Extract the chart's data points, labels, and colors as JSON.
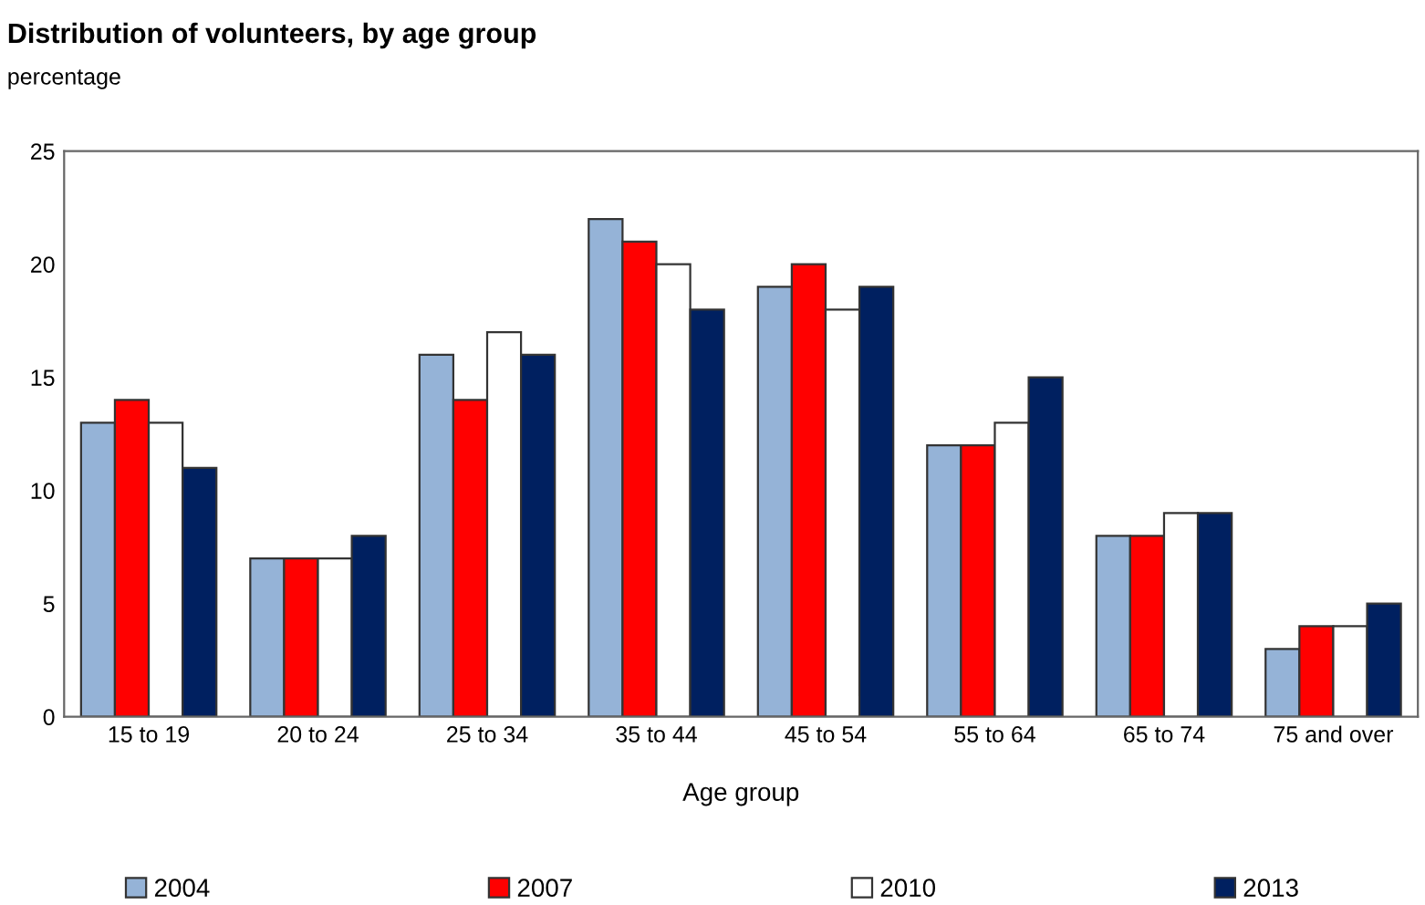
{
  "chart_data": {
    "type": "bar",
    "title": "Distribution of volunteers, by age group",
    "ylabel": "percentage",
    "xlabel": "Age group",
    "categories": [
      "15 to 19",
      "20 to 24",
      "25 to 34",
      "35 to 44",
      "45 to 54",
      "55 to 64",
      "65 to 74",
      "75 and over"
    ],
    "series": [
      {
        "name": "2004",
        "color": "#95b3d7",
        "values": [
          13,
          7,
          16,
          22,
          19,
          12,
          8,
          3
        ]
      },
      {
        "name": "2007",
        "color": "#ff0000",
        "values": [
          14,
          7,
          14,
          21,
          20,
          12,
          8,
          4
        ]
      },
      {
        "name": "2010",
        "color": "#ffffff",
        "values": [
          13,
          7,
          17,
          20,
          18,
          13,
          9,
          4
        ]
      },
      {
        "name": "2013",
        "color": "#002060",
        "values": [
          11,
          8,
          16,
          18,
          19,
          15,
          9,
          5
        ]
      }
    ],
    "ylim": [
      0,
      25
    ],
    "yticks": [
      0,
      5,
      10,
      15,
      20,
      25
    ],
    "grid": false,
    "legend": "bottom"
  }
}
